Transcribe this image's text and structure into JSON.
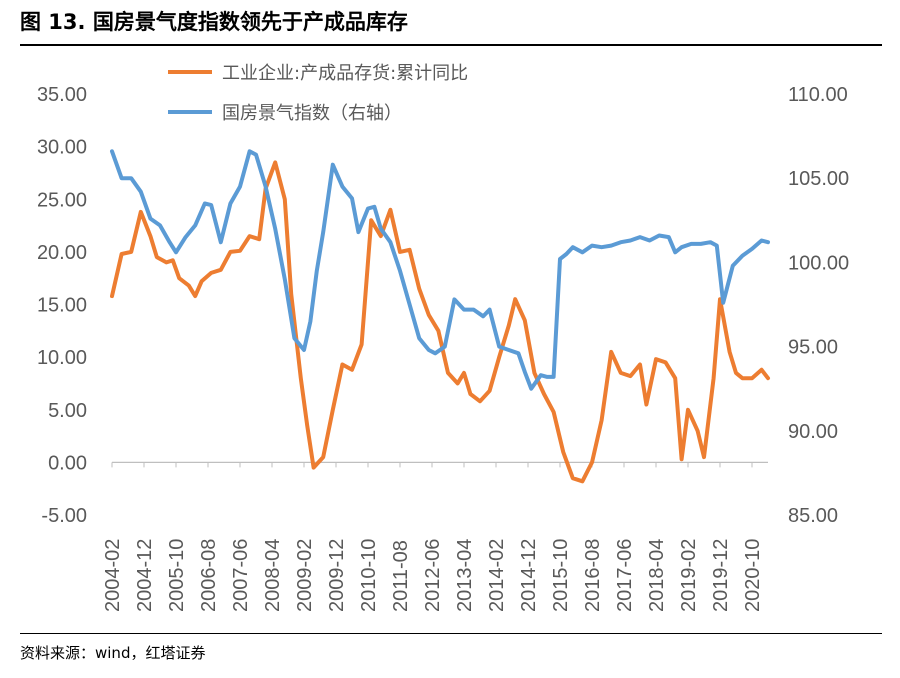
{
  "figure": {
    "title": "图 13. 国房景气度指数领先于产成品库存",
    "source": "资料来源：wind，红塔证券"
  },
  "colors": {
    "series1": "#ED7D31",
    "series2": "#5B9BD5",
    "axis": "#595959",
    "rule": "#000000"
  },
  "chart_data": {
    "type": "line",
    "title": "",
    "legend_position": "top-center",
    "grid": false,
    "x_tick_labels": [
      "2004-02",
      "2004-12",
      "2005-10",
      "2006-08",
      "2007-06",
      "2008-04",
      "2009-02",
      "2009-12",
      "2010-10",
      "2011-08",
      "2012-06",
      "2013-04",
      "2014-02",
      "2014-12",
      "2015-10",
      "2016-08",
      "2017-06",
      "2018-04",
      "2019-02",
      "2019-12",
      "2020-10"
    ],
    "left_axis": {
      "ylim": [
        -5,
        35
      ],
      "ticks": [
        -5,
        0,
        5,
        10,
        15,
        20,
        25,
        30,
        35
      ],
      "tick_labels": [
        "-5.00",
        "0.00",
        "5.00",
        "10.00",
        "15.00",
        "20.00",
        "25.00",
        "30.00",
        "35.00"
      ]
    },
    "right_axis": {
      "ylim": [
        85,
        110
      ],
      "ticks": [
        85,
        90,
        95,
        100,
        105,
        110
      ],
      "tick_labels": [
        "85.00",
        "90.00",
        "95.00",
        "100.00",
        "105.00",
        "110.00"
      ]
    },
    "series": [
      {
        "name": "工业企业:产成品存货:累计同比",
        "axis": "left",
        "color": "#ED7D31",
        "points": [
          [
            "2004-02",
            15.8
          ],
          [
            "2004-05",
            19.8
          ],
          [
            "2004-08",
            20.0
          ],
          [
            "2004-11",
            23.8
          ],
          [
            "2005-02",
            21.5
          ],
          [
            "2005-04",
            19.5
          ],
          [
            "2005-07",
            19.0
          ],
          [
            "2005-09",
            19.2
          ],
          [
            "2005-11",
            17.5
          ],
          [
            "2006-02",
            16.8
          ],
          [
            "2006-04",
            15.8
          ],
          [
            "2006-06",
            17.2
          ],
          [
            "2006-09",
            18.0
          ],
          [
            "2006-12",
            18.3
          ],
          [
            "2007-03",
            20.0
          ],
          [
            "2007-06",
            20.1
          ],
          [
            "2007-09",
            21.5
          ],
          [
            "2007-12",
            21.2
          ],
          [
            "2008-02",
            26.0
          ],
          [
            "2008-05",
            28.5
          ],
          [
            "2008-08",
            25.0
          ],
          [
            "2008-10",
            16.0
          ],
          [
            "2009-01",
            8.0
          ],
          [
            "2009-03",
            3.5
          ],
          [
            "2009-05",
            -0.5
          ],
          [
            "2009-08",
            0.5
          ],
          [
            "2009-11",
            5.0
          ],
          [
            "2010-02",
            9.3
          ],
          [
            "2010-05",
            8.8
          ],
          [
            "2010-08",
            11.2
          ],
          [
            "2010-11",
            23.0
          ],
          [
            "2011-02",
            21.5
          ],
          [
            "2011-05",
            24.0
          ],
          [
            "2011-08",
            20.0
          ],
          [
            "2011-11",
            20.2
          ],
          [
            "2012-02",
            16.5
          ],
          [
            "2012-05",
            14.0
          ],
          [
            "2012-08",
            12.5
          ],
          [
            "2012-11",
            8.5
          ],
          [
            "2013-02",
            7.5
          ],
          [
            "2013-04",
            8.5
          ],
          [
            "2013-06",
            6.5
          ],
          [
            "2013-09",
            5.8
          ],
          [
            "2013-12",
            6.8
          ],
          [
            "2014-03",
            10.0
          ],
          [
            "2014-06",
            13.0
          ],
          [
            "2014-08",
            15.5
          ],
          [
            "2014-11",
            13.5
          ],
          [
            "2015-02",
            8.5
          ],
          [
            "2015-05",
            6.5
          ],
          [
            "2015-08",
            4.8
          ],
          [
            "2015-11",
            1.0
          ],
          [
            "2016-02",
            -1.5
          ],
          [
            "2016-05",
            -1.8
          ],
          [
            "2016-08",
            0.0
          ],
          [
            "2016-11",
            4.0
          ],
          [
            "2017-02",
            10.5
          ],
          [
            "2017-05",
            8.5
          ],
          [
            "2017-08",
            8.2
          ],
          [
            "2017-11",
            9.3
          ],
          [
            "2018-01",
            5.5
          ],
          [
            "2018-04",
            9.8
          ],
          [
            "2018-07",
            9.5
          ],
          [
            "2018-10",
            8.0
          ],
          [
            "2018-12",
            0.3
          ],
          [
            "2019-02",
            5.0
          ],
          [
            "2019-05",
            3.0
          ],
          [
            "2019-07",
            0.5
          ],
          [
            "2019-10",
            8.0
          ],
          [
            "2019-12",
            15.5
          ],
          [
            "2020-03",
            10.5
          ],
          [
            "2020-05",
            8.5
          ],
          [
            "2020-07",
            8.0
          ],
          [
            "2020-10",
            8.0
          ],
          [
            "2021-01",
            8.8
          ],
          [
            "2021-03",
            8.0
          ]
        ]
      },
      {
        "name": "国房景气指数（右轴）",
        "axis": "right",
        "color": "#5B9BD5",
        "points": [
          [
            "2004-02",
            106.6
          ],
          [
            "2004-05",
            105.0
          ],
          [
            "2004-08",
            105.0
          ],
          [
            "2004-11",
            104.2
          ],
          [
            "2005-02",
            102.6
          ],
          [
            "2005-05",
            102.2
          ],
          [
            "2005-08",
            101.2
          ],
          [
            "2005-10",
            100.6
          ],
          [
            "2006-01",
            101.5
          ],
          [
            "2006-04",
            102.2
          ],
          [
            "2006-07",
            103.5
          ],
          [
            "2006-09",
            103.4
          ],
          [
            "2006-12",
            101.2
          ],
          [
            "2007-03",
            103.5
          ],
          [
            "2007-06",
            104.5
          ],
          [
            "2007-09",
            106.6
          ],
          [
            "2007-11",
            106.4
          ],
          [
            "2008-02",
            104.5
          ],
          [
            "2008-05",
            102.0
          ],
          [
            "2008-08",
            99.0
          ],
          [
            "2008-11",
            95.5
          ],
          [
            "2009-02",
            94.8
          ],
          [
            "2009-04",
            96.5
          ],
          [
            "2009-06",
            99.5
          ],
          [
            "2009-08",
            101.8
          ],
          [
            "2009-11",
            105.8
          ],
          [
            "2010-02",
            104.5
          ],
          [
            "2010-05",
            103.8
          ],
          [
            "2010-07",
            101.8
          ],
          [
            "2010-10",
            103.2
          ],
          [
            "2010-12",
            103.3
          ],
          [
            "2011-02",
            102.0
          ],
          [
            "2011-05",
            101.2
          ],
          [
            "2011-08",
            99.5
          ],
          [
            "2011-11",
            97.5
          ],
          [
            "2012-02",
            95.5
          ],
          [
            "2012-05",
            94.8
          ],
          [
            "2012-07",
            94.6
          ],
          [
            "2012-10",
            95.0
          ],
          [
            "2013-01",
            97.8
          ],
          [
            "2013-04",
            97.2
          ],
          [
            "2013-07",
            97.2
          ],
          [
            "2013-10",
            96.8
          ],
          [
            "2013-12",
            97.2
          ],
          [
            "2014-03",
            95.0
          ],
          [
            "2014-06",
            94.8
          ],
          [
            "2014-09",
            94.6
          ],
          [
            "2014-11",
            93.5
          ],
          [
            "2015-01",
            92.5
          ],
          [
            "2015-04",
            93.3
          ],
          [
            "2015-06",
            93.2
          ],
          [
            "2015-08",
            93.2
          ],
          [
            "2015-10",
            100.2
          ],
          [
            "2015-12",
            100.5
          ],
          [
            "2016-02",
            100.9
          ],
          [
            "2016-05",
            100.6
          ],
          [
            "2016-08",
            101.0
          ],
          [
            "2016-11",
            100.9
          ],
          [
            "2017-02",
            101.0
          ],
          [
            "2017-05",
            101.2
          ],
          [
            "2017-08",
            101.3
          ],
          [
            "2017-11",
            101.5
          ],
          [
            "2018-02",
            101.3
          ],
          [
            "2018-05",
            101.6
          ],
          [
            "2018-08",
            101.5
          ],
          [
            "2018-10",
            100.6
          ],
          [
            "2018-12",
            100.9
          ],
          [
            "2019-03",
            101.1
          ],
          [
            "2019-06",
            101.1
          ],
          [
            "2019-09",
            101.2
          ],
          [
            "2019-11",
            101.0
          ],
          [
            "2020-01",
            97.6
          ],
          [
            "2020-04",
            99.8
          ],
          [
            "2020-07",
            100.4
          ],
          [
            "2020-10",
            100.8
          ],
          [
            "2021-01",
            101.3
          ],
          [
            "2021-03",
            101.2
          ]
        ]
      }
    ]
  }
}
